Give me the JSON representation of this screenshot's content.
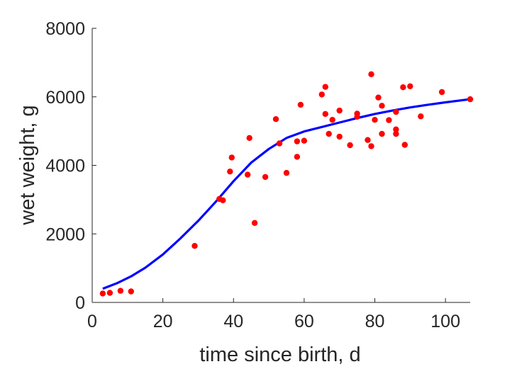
{
  "chart_data": {
    "type": "scatter",
    "xlabel": "time since birth, d",
    "ylabel": "wet weight, g",
    "xlim": [
      0,
      107
    ],
    "ylim": [
      0,
      8000
    ],
    "x_ticks": [
      "0",
      "20",
      "40",
      "60",
      "80",
      "100"
    ],
    "y_ticks": [
      "0",
      "2000",
      "4000",
      "6000",
      "8000"
    ],
    "grid": false,
    "box": false,
    "series": [
      {
        "kind": "points",
        "color": "#ff0000",
        "points": [
          [
            3,
            260
          ],
          [
            5,
            280
          ],
          [
            8,
            340
          ],
          [
            11,
            320
          ],
          [
            29,
            1650
          ],
          [
            36,
            3020
          ],
          [
            37,
            2980
          ],
          [
            39,
            3820
          ],
          [
            39.5,
            4230
          ],
          [
            44,
            3730
          ],
          [
            44.5,
            4800
          ],
          [
            46,
            2320
          ],
          [
            49,
            3660
          ],
          [
            52,
            5350
          ],
          [
            53,
            4640
          ],
          [
            55,
            3780
          ],
          [
            58,
            4250
          ],
          [
            58,
            4700
          ],
          [
            59,
            5770
          ],
          [
            60,
            4720
          ],
          [
            65,
            6070
          ],
          [
            66,
            6290
          ],
          [
            66,
            5500
          ],
          [
            67,
            4920
          ],
          [
            68,
            5330
          ],
          [
            70,
            5600
          ],
          [
            70,
            4840
          ],
          [
            73,
            4590
          ],
          [
            75,
            5510
          ],
          [
            75,
            5420
          ],
          [
            78,
            4740
          ],
          [
            79,
            6660
          ],
          [
            79,
            4560
          ],
          [
            80,
            5330
          ],
          [
            81,
            5980
          ],
          [
            82,
            5740
          ],
          [
            82,
            4920
          ],
          [
            84,
            5320
          ],
          [
            86,
            5560
          ],
          [
            86,
            5050
          ],
          [
            86,
            4920
          ],
          [
            88,
            6280
          ],
          [
            88.5,
            4600
          ],
          [
            90,
            6310
          ],
          [
            93,
            5430
          ],
          [
            99,
            6140
          ],
          [
            107,
            5930
          ]
        ]
      },
      {
        "kind": "line",
        "color": "#0000ff",
        "points": [
          [
            3,
            400
          ],
          [
            7,
            560
          ],
          [
            11,
            760
          ],
          [
            15,
            1010
          ],
          [
            20,
            1400
          ],
          [
            25,
            1870
          ],
          [
            30,
            2380
          ],
          [
            35,
            2940
          ],
          [
            40,
            3540
          ],
          [
            45,
            4080
          ],
          [
            50,
            4480
          ],
          [
            55,
            4800
          ],
          [
            60,
            4990
          ],
          [
            65,
            5120
          ],
          [
            70,
            5250
          ],
          [
            75,
            5380
          ],
          [
            80,
            5500
          ],
          [
            85,
            5600
          ],
          [
            90,
            5690
          ],
          [
            95,
            5770
          ],
          [
            100,
            5840
          ],
          [
            107,
            5930
          ]
        ]
      }
    ]
  }
}
